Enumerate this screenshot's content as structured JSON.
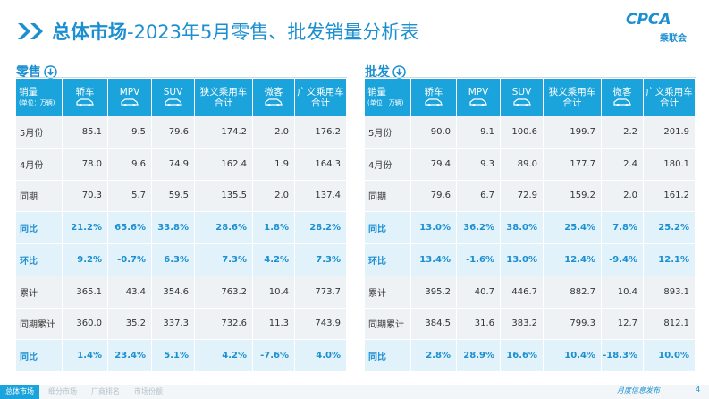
{
  "header": {
    "title_main": "总体市场",
    "title_rest": "-2023年5月零售、批发销量分析表",
    "logo": "CPCA",
    "logo_sub": "乘联会"
  },
  "tables": [
    {
      "section": "零售",
      "corner": "销量",
      "unit": "(单位：万辆)",
      "columns": [
        "轿车",
        "MPV",
        "SUV",
        "狭义乘用车\n合计",
        "微客",
        "广义乘用车\n合计"
      ],
      "rows": [
        {
          "label": "5月份",
          "highlight": false,
          "cells": [
            "85.1",
            "9.5",
            "79.6",
            "174.2",
            "2.0",
            "176.2"
          ]
        },
        {
          "label": "4月份",
          "highlight": false,
          "cells": [
            "78.0",
            "9.6",
            "74.9",
            "162.4",
            "1.9",
            "164.3"
          ]
        },
        {
          "label": "同期",
          "highlight": false,
          "cells": [
            "70.3",
            "5.7",
            "59.5",
            "135.5",
            "2.0",
            "137.4"
          ]
        },
        {
          "label": "同比",
          "highlight": true,
          "cells": [
            "21.2%",
            "65.6%",
            "33.8%",
            "28.6%",
            "1.8%",
            "28.2%"
          ]
        },
        {
          "label": "环比",
          "highlight": true,
          "cells": [
            "9.2%",
            "-0.7%",
            "6.3%",
            "7.3%",
            "4.2%",
            "7.3%"
          ]
        },
        {
          "label": "累计",
          "highlight": false,
          "cells": [
            "365.1",
            "43.4",
            "354.6",
            "763.2",
            "10.4",
            "773.7"
          ]
        },
        {
          "label": "同期累计",
          "highlight": false,
          "cells": [
            "360.0",
            "35.2",
            "337.3",
            "732.6",
            "11.3",
            "743.9"
          ]
        },
        {
          "label": "同比",
          "highlight": true,
          "cells": [
            "1.4%",
            "23.4%",
            "5.1%",
            "4.2%",
            "-7.6%",
            "4.0%"
          ]
        }
      ]
    },
    {
      "section": "批发",
      "corner": "销量",
      "unit": "(单位：万辆)",
      "columns": [
        "轿车",
        "MPV",
        "SUV",
        "狭义乘用车\n合计",
        "微客",
        "广义乘用车\n合计"
      ],
      "rows": [
        {
          "label": "5月份",
          "highlight": false,
          "cells": [
            "90.0",
            "9.1",
            "100.6",
            "199.7",
            "2.2",
            "201.9"
          ]
        },
        {
          "label": "4月份",
          "highlight": false,
          "cells": [
            "79.4",
            "9.3",
            "89.0",
            "177.7",
            "2.4",
            "180.1"
          ]
        },
        {
          "label": "同期",
          "highlight": false,
          "cells": [
            "79.6",
            "6.7",
            "72.9",
            "159.2",
            "2.0",
            "161.2"
          ]
        },
        {
          "label": "同比",
          "highlight": true,
          "cells": [
            "13.0%",
            "36.2%",
            "38.0%",
            "25.4%",
            "7.8%",
            "25.2%"
          ]
        },
        {
          "label": "环比",
          "highlight": true,
          "cells": [
            "13.4%",
            "-1.6%",
            "13.0%",
            "12.4%",
            "-9.4%",
            "12.1%"
          ]
        },
        {
          "label": "累计",
          "highlight": false,
          "cells": [
            "395.2",
            "40.7",
            "446.7",
            "882.7",
            "10.4",
            "893.1"
          ]
        },
        {
          "label": "同期累计",
          "highlight": false,
          "cells": [
            "384.5",
            "31.6",
            "383.2",
            "799.3",
            "12.7",
            "812.1"
          ]
        },
        {
          "label": "同比",
          "highlight": true,
          "cells": [
            "2.8%",
            "28.9%",
            "16.6%",
            "10.4%",
            "-18.3%",
            "10.0%"
          ]
        }
      ]
    }
  ],
  "footer": {
    "tabs": [
      "总体市场",
      "细分市场",
      "厂商排名",
      "市场份额"
    ],
    "note": "月度信息发布",
    "page": "4"
  }
}
